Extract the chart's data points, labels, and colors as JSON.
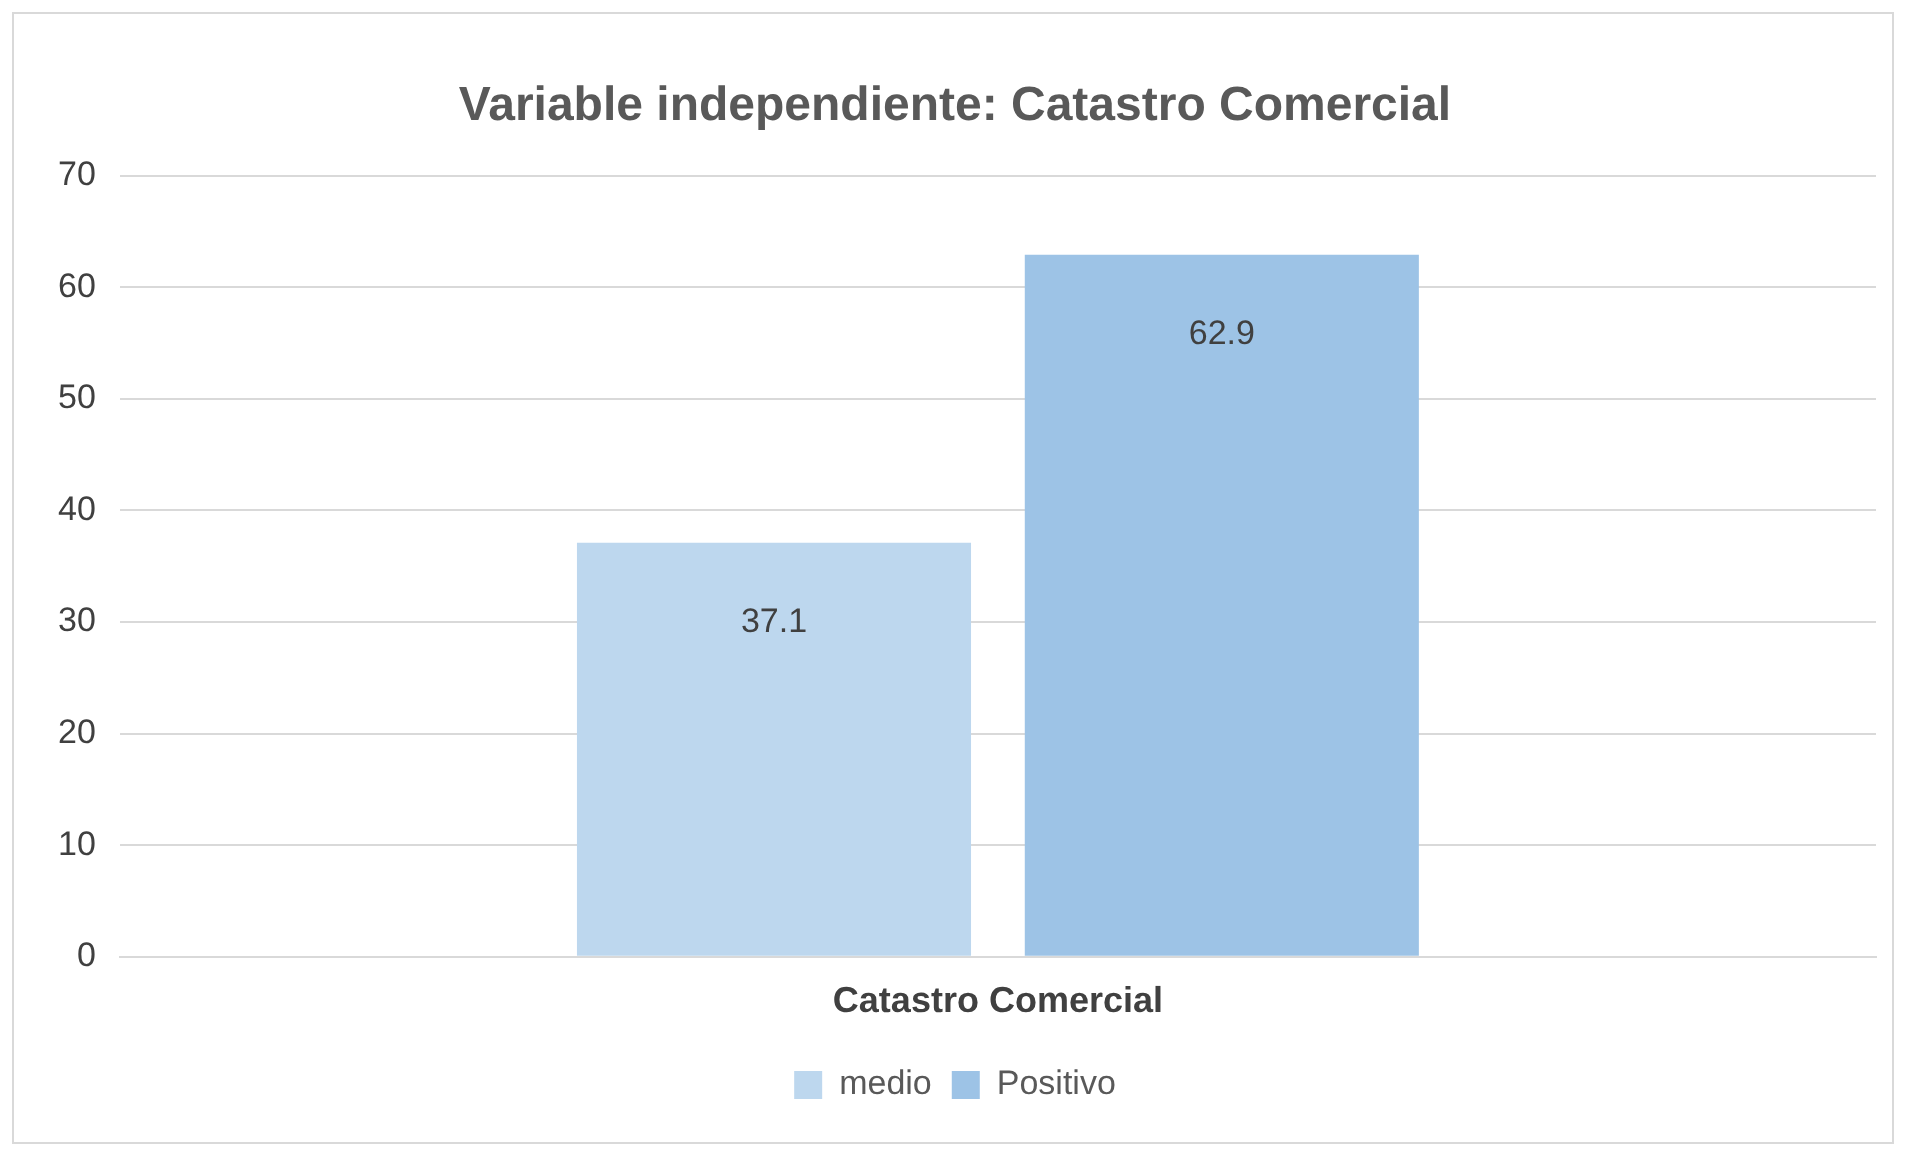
{
  "chart_data": {
    "type": "bar",
    "title": "Variable independiente: Catastro Comercial",
    "categories": [
      "Catastro Comercial"
    ],
    "series": [
      {
        "name": "medio",
        "color": "#bdd7ee",
        "values": [
          37.1
        ]
      },
      {
        "name": "Positivo",
        "color": "#9dc3e6",
        "values": [
          62.9
        ]
      }
    ],
    "ylim": [
      0,
      70
    ],
    "yticks": [
      0,
      10,
      20,
      30,
      40,
      50,
      60,
      70
    ],
    "grid": "y",
    "legend": "bottom",
    "data_labels": true
  }
}
